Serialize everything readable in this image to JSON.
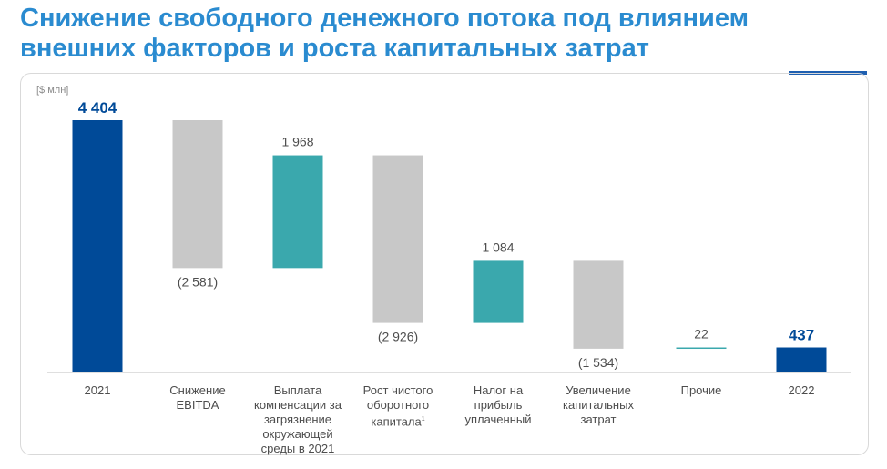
{
  "title": "Снижение свободного денежного потока под влиянием\nвнешних факторов и роста капитальных затрат",
  "unit_label": "[$ млн]",
  "colors": {
    "title": "#2a8bd0",
    "total": "#004a98",
    "increase": "#3aa8ad",
    "decrease": "#c8c8c8",
    "accent": "#1f5fb0"
  },
  "chart_data": {
    "type": "bar",
    "subtype": "waterfall",
    "categories": [
      "2021",
      "Снижение EBITDA",
      "Выплата компенсации за загрязнение окружающей среды в 2021",
      "Рост чистого оборотного капитала",
      "Налог на прибыль уплаченный",
      "Увеличение капитальных затрат",
      "Прочие",
      "2022"
    ],
    "category_footnotes": [
      "",
      "",
      "",
      "1",
      "",
      "",
      "",
      ""
    ],
    "steps": [
      {
        "kind": "total",
        "value": 4404,
        "label": "4 404"
      },
      {
        "kind": "decrease",
        "value": -2581,
        "label": "(2 581)"
      },
      {
        "kind": "increase",
        "value": 1968,
        "label": "1 968"
      },
      {
        "kind": "decrease",
        "value": -2926,
        "label": "(2 926)"
      },
      {
        "kind": "increase",
        "value": 1084,
        "label": "1 084"
      },
      {
        "kind": "decrease",
        "value": -1534,
        "label": "(1 534)"
      },
      {
        "kind": "increase",
        "value": 22,
        "label": "22"
      },
      {
        "kind": "total",
        "value": 437,
        "label": "437"
      }
    ],
    "ylim": [
      0,
      4404
    ],
    "grid": false,
    "legend": "none"
  }
}
